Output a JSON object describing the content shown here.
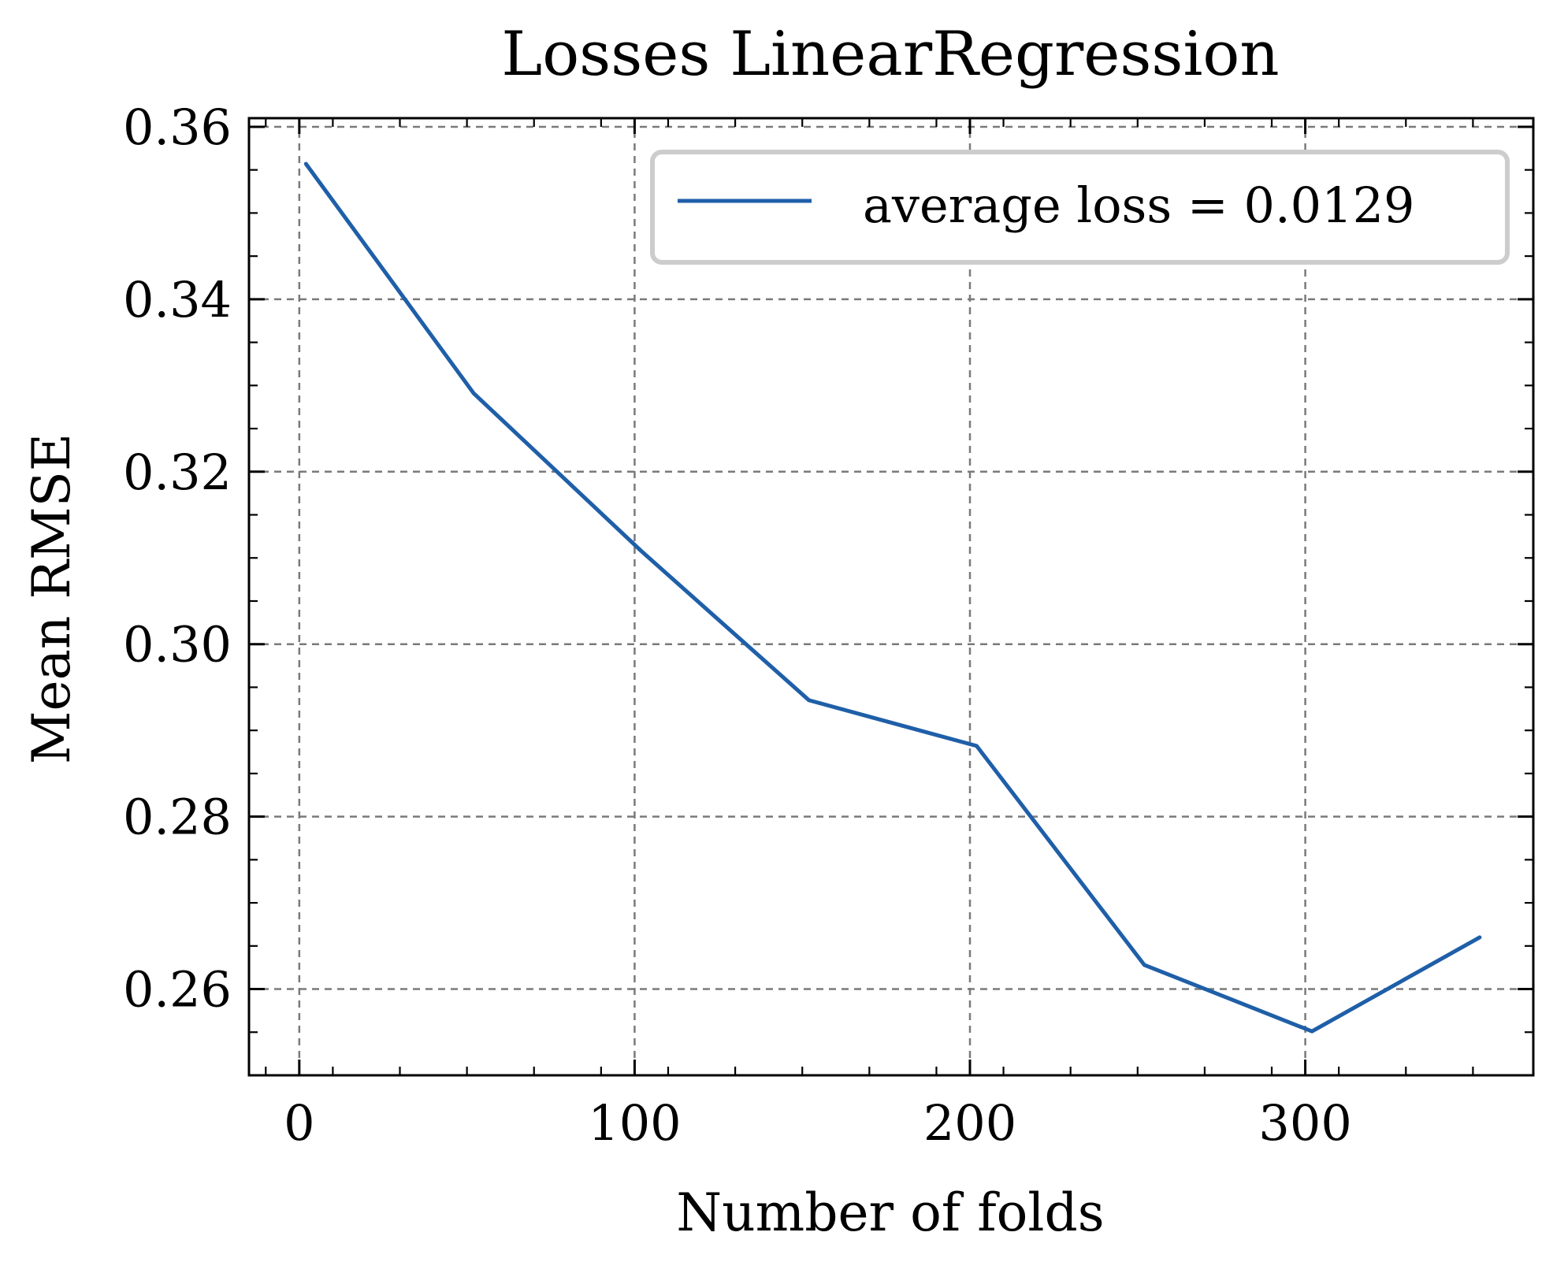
{
  "chart_data": {
    "type": "line",
    "title": "Losses LinearRegression",
    "xlabel": "Number of folds",
    "ylabel": "Mean RMSE",
    "xlim": [
      -15,
      368
    ],
    "ylim": [
      0.25,
      0.361
    ],
    "x_ticks": [
      0,
      100,
      200,
      300
    ],
    "x_tick_labels": [
      "0",
      "100",
      "200",
      "300"
    ],
    "y_ticks": [
      0.26,
      0.28,
      0.3,
      0.32,
      0.34,
      0.36
    ],
    "y_tick_labels": [
      "0.26",
      "0.28",
      "0.30",
      "0.32",
      "0.34",
      "0.36"
    ],
    "grid": true,
    "legend_position": "top-right",
    "series": [
      {
        "name": "average loss = 0.0129",
        "color": "#1f5fa8",
        "x": [
          2,
          52,
          102,
          152,
          202,
          252,
          302,
          352
        ],
        "y": [
          0.3557,
          0.3291,
          0.3108,
          0.2935,
          0.2882,
          0.2628,
          0.2551,
          0.266
        ]
      }
    ]
  }
}
